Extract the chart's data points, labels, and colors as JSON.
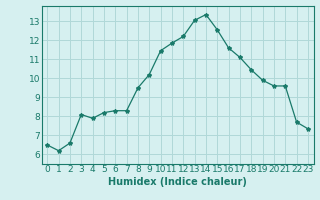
{
  "x": [
    0,
    1,
    2,
    3,
    4,
    5,
    6,
    7,
    8,
    9,
    10,
    11,
    12,
    13,
    14,
    15,
    16,
    17,
    18,
    19,
    20,
    21,
    22,
    23
  ],
  "y": [
    6.5,
    6.2,
    6.6,
    8.1,
    7.9,
    8.2,
    8.3,
    8.3,
    9.5,
    10.2,
    11.45,
    11.85,
    12.2,
    13.05,
    13.35,
    12.55,
    11.6,
    11.1,
    10.45,
    9.9,
    9.6,
    9.6,
    7.7,
    7.35
  ],
  "line_color": "#1a7a6a",
  "marker": "*",
  "marker_size": 3,
  "bg_color": "#d6f0f0",
  "grid_color": "#b0d8d8",
  "xlabel": "Humidex (Indice chaleur)",
  "xlim": [
    -0.5,
    23.5
  ],
  "ylim": [
    5.5,
    13.8
  ],
  "yticks": [
    6,
    7,
    8,
    9,
    10,
    11,
    12,
    13
  ],
  "xticks": [
    0,
    1,
    2,
    3,
    4,
    5,
    6,
    7,
    8,
    9,
    10,
    11,
    12,
    13,
    14,
    15,
    16,
    17,
    18,
    19,
    20,
    21,
    22,
    23
  ],
  "title_fontsize": 9,
  "label_fontsize": 7,
  "tick_fontsize": 6.5
}
